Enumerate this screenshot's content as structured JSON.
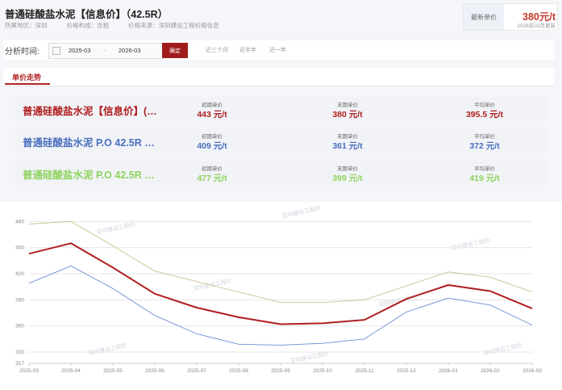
{
  "header": {
    "title": "普通硅酸盐水泥【信息价】（42.5R）",
    "region": "所属地区：深圳",
    "price_type": "价格构成：含税",
    "source": "价格来源：深圳建设工程价格信息",
    "latest_label": "最新单价",
    "latest_value": "380元/t",
    "latest_date": "2026年03月更新"
  },
  "filter": {
    "label": "分析时间:",
    "start": "2025-03",
    "separator": "-",
    "end": "2026-03",
    "confirm": "确定",
    "quick": [
      "近三个月",
      "近半年",
      "近一年"
    ]
  },
  "tabs": {
    "active": "单价走势"
  },
  "summary": {
    "col_labels": [
      "初期单价",
      "末期单价",
      "平均单价"
    ],
    "rows": [
      {
        "name": "普通硅酸盐水泥【信息价】(…",
        "color": "#b01e1e",
        "initial": "443 元/t",
        "final": "380 元/t",
        "average": "395.5 元/t"
      },
      {
        "name": "普通硅酸盐水泥 P.O 42.5R …",
        "color": "#4a6fbf",
        "initial": "409 元/t",
        "final": "361 元/t",
        "average": "372 元/t"
      },
      {
        "name": "普通硅酸盐水泥 P.O 42.5R …",
        "color": "#8dd35c",
        "initial": "477 元/t",
        "final": "399 元/t",
        "average": "419 元/t"
      }
    ]
  },
  "watermark": "深圳建设工程价",
  "chart_data": {
    "type": "line",
    "x": [
      "2025-03",
      "2025-04",
      "2025-05",
      "2025-06",
      "2025-07",
      "2025-08",
      "2025-09",
      "2025-10",
      "2025-11",
      "2025-12",
      "2026-01",
      "2026-02",
      "2026-03"
    ],
    "y_ticks": [
      317,
      330,
      360,
      390,
      420,
      450,
      480
    ],
    "ylim": [
      317,
      484
    ],
    "grid": true,
    "series": [
      {
        "color": "#b01e1e",
        "values": [
          443,
          455,
          427,
          397,
          381,
          370,
          362,
          363,
          367,
          391,
          407,
          400,
          380
        ]
      },
      {
        "color": "#6c8fd4",
        "values": [
          409,
          429,
          403,
          372,
          351,
          339,
          338,
          340,
          345,
          376,
          392,
          384,
          361
        ]
      },
      {
        "color": "#c9c28e",
        "values": [
          477,
          480,
          452,
          423,
          411,
          399,
          387,
          387,
          390,
          406,
          422,
          416,
          399
        ]
      }
    ]
  }
}
